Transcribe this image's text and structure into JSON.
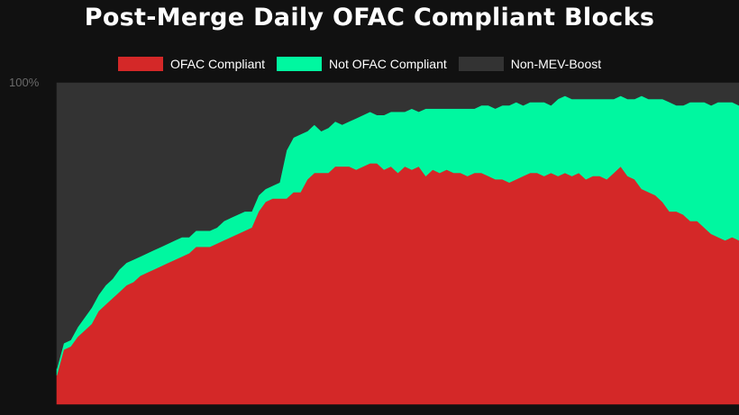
{
  "chart_data": {
    "type": "area",
    "stacked": true,
    "title": "Post-Merge Daily OFAC Compliant Blocks",
    "y_tick_top": "100%",
    "ylim": [
      0,
      100
    ],
    "legend_placement": "top",
    "grid": false,
    "series": [
      {
        "name": "OFAC Compliant",
        "color": "#d42828",
        "values": [
          9,
          17,
          18,
          21,
          23,
          25,
          29,
          31,
          33,
          35,
          37,
          38,
          40,
          41,
          42,
          43,
          44,
          45,
          46,
          47,
          49,
          49,
          49,
          50,
          51,
          52,
          53,
          54,
          55,
          60,
          63,
          64,
          64,
          64,
          66,
          66,
          70,
          72,
          72,
          72,
          74,
          74,
          74,
          73,
          74,
          75,
          75,
          73,
          74,
          72,
          74,
          73,
          74,
          71,
          73,
          72,
          73,
          72,
          72,
          71,
          72,
          72,
          71,
          70,
          70,
          69,
          70,
          71,
          72,
          72,
          71,
          72,
          71,
          72,
          71,
          72,
          70,
          71,
          71,
          70,
          72,
          74,
          71,
          70,
          67,
          66,
          65,
          63,
          60,
          60,
          59,
          57,
          57,
          55,
          53,
          52,
          51,
          52,
          51
        ]
      },
      {
        "name": "Not OFAC Compliant",
        "color": "#00f7a0",
        "values": [
          2,
          2,
          2,
          3,
          4,
          5,
          5,
          6,
          6,
          7,
          7,
          7,
          6,
          6,
          6,
          6,
          6,
          6,
          6,
          5,
          5,
          5,
          5,
          5,
          6,
          6,
          6,
          6,
          5,
          5,
          4,
          4,
          5,
          15,
          17,
          18,
          15,
          15,
          13,
          14,
          14,
          13,
          14,
          16,
          16,
          16,
          15,
          17,
          17,
          19,
          17,
          19,
          17,
          21,
          19,
          20,
          19,
          20,
          20,
          21,
          20,
          21,
          22,
          22,
          23,
          24,
          24,
          22,
          22,
          22,
          23,
          21,
          24,
          24,
          24,
          23,
          25,
          24,
          24,
          25,
          23,
          22,
          24,
          25,
          29,
          29,
          30,
          32,
          34,
          33,
          34,
          37,
          37,
          39,
          40,
          42,
          43,
          42,
          42
        ]
      },
      {
        "name": "Non-MEV-Boost",
        "color": "#333333",
        "values": [
          89,
          81,
          80,
          76,
          73,
          70,
          66,
          63,
          61,
          58,
          56,
          55,
          54,
          53,
          52,
          51,
          50,
          49,
          48,
          48,
          46,
          46,
          46,
          45,
          43,
          42,
          41,
          40,
          40,
          35,
          33,
          32,
          31,
          21,
          17,
          16,
          15,
          13,
          15,
          14,
          12,
          13,
          12,
          11,
          10,
          9,
          10,
          10,
          9,
          9,
          9,
          8,
          9,
          8,
          8,
          8,
          8,
          8,
          8,
          8,
          8,
          7,
          7,
          8,
          7,
          7,
          6,
          7,
          6,
          6,
          6,
          7,
          5,
          4,
          5,
          5,
          5,
          5,
          5,
          5,
          5,
          4,
          5,
          5,
          4,
          5,
          5,
          5,
          6,
          7,
          7,
          6,
          6,
          6,
          7,
          6,
          6,
          6,
          7
        ]
      }
    ]
  }
}
